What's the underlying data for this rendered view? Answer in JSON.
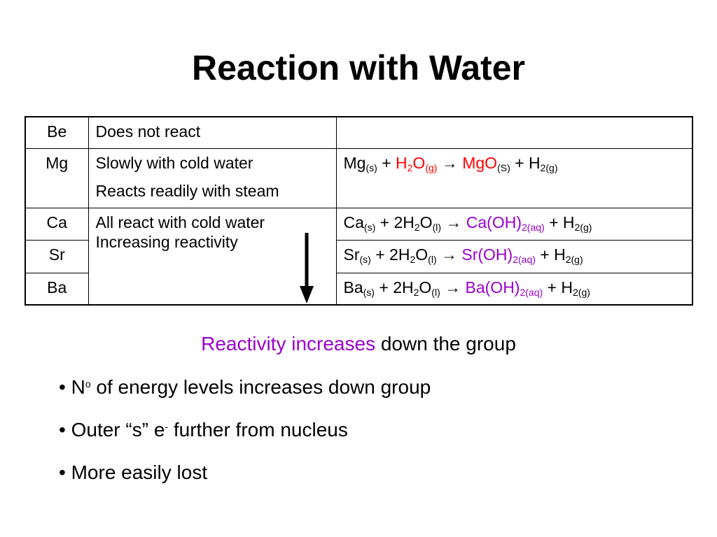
{
  "title": "Reaction with Water",
  "table": {
    "rows": [
      {
        "element": "Be",
        "description": [
          "Does not react"
        ]
      },
      {
        "element": "Mg",
        "description": [
          "Slowly with cold water",
          "Reacts readily with steam"
        ],
        "equation": {
          "reactant": "Mg",
          "reactant_state": "(s)",
          "plus1": " + ",
          "water_prefix": "",
          "water_H": "H",
          "water_2": "2",
          "water_O": "O",
          "water_state": "(g)",
          "arrow": " → ",
          "product": "MgO",
          "product_sub": "(S)",
          "plus2": " + ",
          "gas": "H",
          "gas_sub": "2(g)"
        }
      },
      {
        "element": "Ca",
        "description": [
          "All react with cold water",
          "Increasing reactivity"
        ],
        "equation": {
          "reactant": "Ca",
          "reactant_state": "(s)",
          "plus1": " + ",
          "water_prefix": "2",
          "water_H": "H",
          "water_2": "2",
          "water_O": "O",
          "water_state": "(l)",
          "arrow": " → ",
          "product": "Ca(OH)",
          "product_sub": "2(aq)",
          "plus2": " + ",
          "gas": "H",
          "gas_sub": "2(g)"
        }
      },
      {
        "element": "Sr",
        "equation": {
          "reactant": "Sr",
          "reactant_state": "(s)",
          "plus1": " + ",
          "water_prefix": "2",
          "water_H": "H",
          "water_2": "2",
          "water_O": "O",
          "water_state": "(l)",
          "arrow": " → ",
          "product": "Sr(OH)",
          "product_sub": "2(aq)",
          "plus2": " + ",
          "gas": "H",
          "gas_sub": "2(g)"
        }
      },
      {
        "element": "Ba",
        "equation": {
          "reactant": "Ba",
          "reactant_state": "(s)",
          "plus1": " + ",
          "water_prefix": "2",
          "water_H": "H",
          "water_2": "2",
          "water_O": "O",
          "water_state": "(l)",
          "arrow": " → ",
          "product": "Ba(OH)",
          "product_sub": "2(aq)",
          "plus2": " + ",
          "gas": "H",
          "gas_sub": "2(g)"
        }
      }
    ]
  },
  "summary": {
    "highlight": "Reactivity increases",
    "rest": " down the group"
  },
  "bullets": [
    {
      "mark": "•",
      "pre": " N",
      "sup": "o",
      "post": " of energy levels increases down group"
    },
    {
      "mark": "•",
      "pre": " Outer “s” e",
      "sup": "-",
      "post": " further from nucleus"
    },
    {
      "mark": "•",
      "pre": " More easily lost",
      "sup": "",
      "post": ""
    }
  ],
  "colors": {
    "water_product_mg": "#ff0000",
    "products": "#9900cc",
    "summary_highlight": "#9900cc"
  },
  "icons": {
    "trend_arrow": "down-arrow-icon"
  }
}
